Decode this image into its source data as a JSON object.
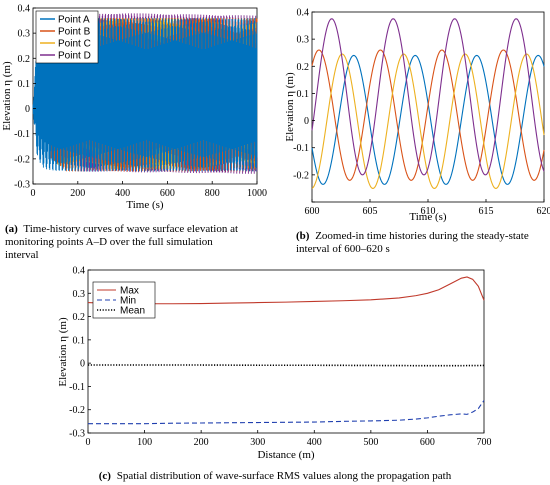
{
  "panels": [
    {
      "id": "a",
      "chart_data": {
        "type": "line",
        "xlabel": "Time (s)",
        "ylabel": "Elevation η (m)",
        "xlim": [
          0,
          1000
        ],
        "ylim": [
          -0.3,
          0.4
        ],
        "xticks": [
          0,
          200,
          400,
          600,
          800,
          1000
        ],
        "yticks": [
          -0.3,
          -0.2,
          -0.1,
          0,
          0.1,
          0.2,
          0.3,
          0.4
        ],
        "ytick_labels": [
          "-0.3",
          "-0.2",
          "-0.1",
          "0",
          "0.1",
          "0.2",
          "0.3",
          "0.4"
        ],
        "grid": false,
        "legend": "top-left",
        "series": [
          {
            "name": "Point A",
            "color": "#0072BD",
            "max_envelope": [
              [
                0,
                0.01
              ],
              [
                20,
                0.3
              ],
              [
                50,
                0.35
              ],
              [
                100,
                0.36
              ],
              [
                1000,
                0.36
              ]
            ],
            "min_envelope": [
              [
                0,
                -0.01
              ],
              [
                20,
                -0.2
              ],
              [
                50,
                -0.24
              ],
              [
                100,
                -0.25
              ],
              [
                1000,
                -0.25
              ]
            ]
          },
          {
            "name": "Point B",
            "color": "#D95319",
            "max_envelope": [
              [
                40,
                0.0
              ],
              [
                80,
                0.3
              ],
              [
                150,
                0.36
              ],
              [
                1000,
                0.36
              ]
            ],
            "min_envelope": [
              [
                40,
                0.0
              ],
              [
                80,
                -0.2
              ],
              [
                150,
                -0.25
              ],
              [
                1000,
                -0.25
              ]
            ]
          },
          {
            "name": "Point C",
            "color": "#EDB120",
            "max_envelope": [
              [
                60,
                0.0
              ],
              [
                100,
                0.3
              ],
              [
                160,
                0.36
              ],
              [
                1000,
                0.36
              ]
            ],
            "min_envelope": [
              [
                60,
                0.0
              ],
              [
                100,
                -0.22
              ],
              [
                160,
                -0.24
              ],
              [
                1000,
                -0.24
              ]
            ]
          },
          {
            "name": "Point D",
            "color": "#7E2F8E",
            "max_envelope": [
              [
                90,
                0.0
              ],
              [
                150,
                0.37
              ],
              [
                200,
                0.375
              ],
              [
                400,
                0.38
              ],
              [
                1000,
                0.37
              ]
            ],
            "min_envelope": [
              [
                90,
                0.0
              ],
              [
                150,
                -0.23
              ],
              [
                200,
                -0.25
              ],
              [
                1000,
                -0.26
              ]
            ]
          }
        ]
      },
      "caption_label": "(a)",
      "caption_lines": [
        "Time-history curves of wave surface elevation at",
        "monitoring points A–D over the full simulation",
        "interval"
      ]
    },
    {
      "id": "b",
      "chart_data": {
        "type": "line",
        "xlabel": "Time (s)",
        "ylabel": "Elevation η (m)",
        "xlim": [
          600,
          620
        ],
        "ylim": [
          -0.3,
          0.4
        ],
        "xticks": [
          600,
          605,
          610,
          615,
          620
        ],
        "yticks": [
          -0.3,
          -0.2,
          -0.1,
          0,
          0.1,
          0.2,
          0.3,
          0.4
        ],
        "ytick_labels": [
          "",
          "-0.2",
          "-0.1",
          "0",
          "0.1",
          "0.2",
          "0.3",
          "0.4"
        ],
        "grid": false,
        "series": [
          {
            "color": "#0072BD",
            "period": 5.3,
            "crest": 0.24,
            "trough": -0.235,
            "crest_time": 603.6
          },
          {
            "color": "#D95319",
            "period": 5.3,
            "crest": 0.26,
            "trough": -0.22,
            "crest_time": 600.6
          },
          {
            "color": "#EDB120",
            "period": 5.3,
            "crest": 0.245,
            "trough": -0.25,
            "crest_time": 602.6
          },
          {
            "color": "#7E2F8E",
            "period": 5.3,
            "crest": 0.375,
            "trough": -0.2,
            "crest_time": 601.7
          }
        ]
      },
      "caption_label": "(b)",
      "caption_lines": [
        "Zoomed-in time histories during the steady-state",
        "interval of 600–620 s"
      ]
    },
    {
      "id": "c",
      "chart_data": {
        "type": "line",
        "xlabel": "Distance (m)",
        "ylabel": "Elevation η (m)",
        "xlim": [
          0,
          700
        ],
        "ylim": [
          -0.3,
          0.4
        ],
        "xticks": [
          0,
          100,
          200,
          300,
          400,
          500,
          600,
          700
        ],
        "yticks": [
          -0.3,
          -0.2,
          -0.1,
          0,
          0.1,
          0.2,
          0.3,
          0.4
        ],
        "ytick_labels": [
          "-0.3",
          "-0.2",
          "-0.1",
          "0",
          "0.1",
          "0.2",
          "0.3",
          "0.4"
        ],
        "grid": false,
        "legend": "top-left",
        "series": [
          {
            "name": "Max",
            "color": "#C0392B",
            "style": "solid",
            "x": [
              0,
              50,
              100,
              150,
              200,
              250,
              300,
              350,
              400,
              450,
              500,
              550,
              580,
              600,
              620,
              640,
              660,
              670,
              680,
              690,
              700
            ],
            "y": [
              0.26,
              0.255,
              0.255,
              0.255,
              0.256,
              0.258,
              0.26,
              0.262,
              0.265,
              0.268,
              0.272,
              0.28,
              0.29,
              0.3,
              0.315,
              0.34,
              0.365,
              0.37,
              0.36,
              0.33,
              0.27
            ]
          },
          {
            "name": "Min",
            "color": "#1F3FAF",
            "style": "dashed",
            "x": [
              0,
              50,
              100,
              150,
              200,
              250,
              300,
              350,
              400,
              450,
              500,
              550,
              580,
              600,
              620,
              640,
              660,
              670,
              680,
              690,
              700
            ],
            "y": [
              -0.26,
              -0.26,
              -0.26,
              -0.258,
              -0.257,
              -0.256,
              -0.255,
              -0.254,
              -0.253,
              -0.25,
              -0.248,
              -0.245,
              -0.24,
              -0.235,
              -0.228,
              -0.222,
              -0.218,
              -0.22,
              -0.21,
              -0.195,
              -0.16
            ]
          },
          {
            "name": "Mean",
            "color": "#000000",
            "style": "dotted",
            "x": [
              0,
              100,
              200,
              300,
              400,
              500,
              600,
              650,
              700
            ],
            "y": [
              -0.008,
              -0.008,
              -0.008,
              -0.009,
              -0.009,
              -0.01,
              -0.011,
              -0.011,
              -0.01
            ]
          }
        ]
      },
      "caption_label": "(c)",
      "caption_lines": [
        "Spatial distribution of wave-surface RMS values along the propagation path"
      ]
    }
  ]
}
